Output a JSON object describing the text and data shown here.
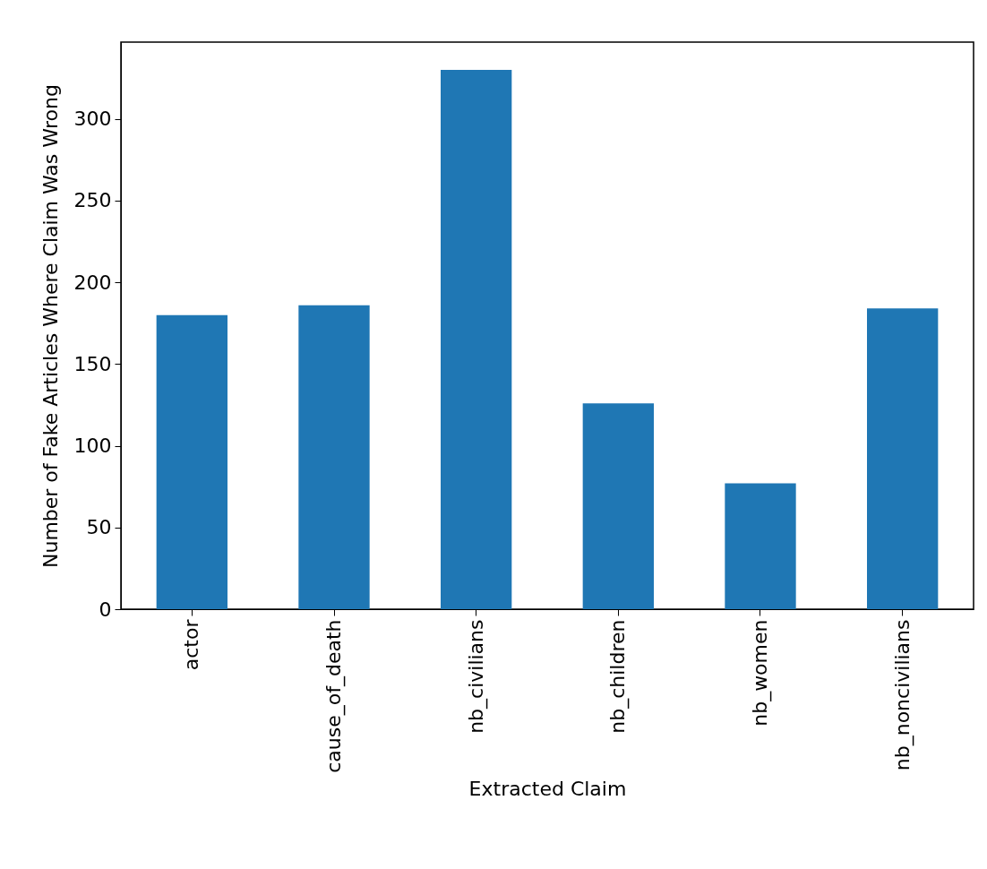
{
  "chart_data": {
    "type": "bar",
    "xlabel": "Extracted Claim",
    "ylabel": "Number of Fake Articles Where Claim Was Wrong",
    "categories": [
      "actor",
      "cause_of_death",
      "nb_civilians",
      "nb_children",
      "nb_women",
      "nb_noncivilians"
    ],
    "values": [
      180,
      186,
      330,
      126,
      77,
      184
    ],
    "color": "#1f77b4",
    "ylim": [
      0,
      347
    ],
    "yticks": [
      0,
      50,
      100,
      150,
      200,
      250,
      300
    ],
    "grid": false
  }
}
